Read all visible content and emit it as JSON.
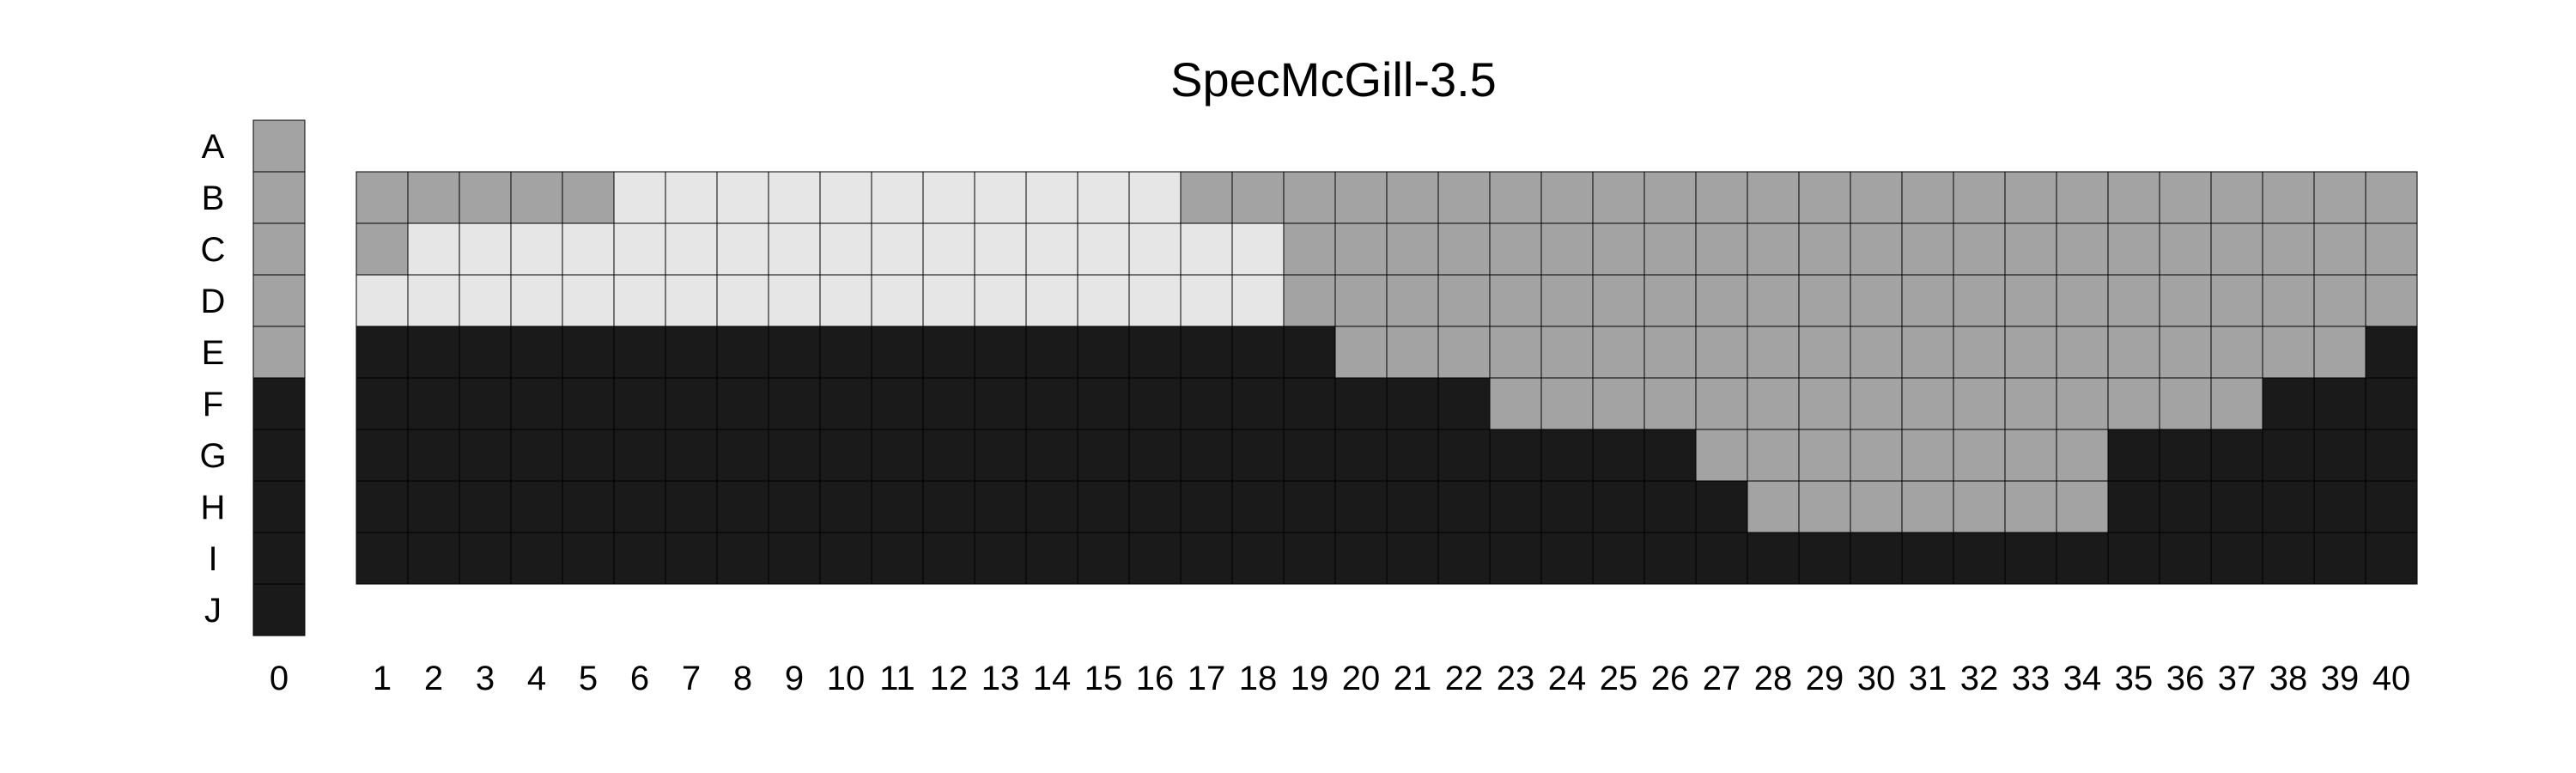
{
  "chart_data": {
    "type": "heatmap",
    "title": "SpecMcGill-3.5",
    "rows": [
      "A",
      "B",
      "C",
      "D",
      "E",
      "F",
      "G",
      "H",
      "I",
      "J"
    ],
    "column_0": {
      "label": "0",
      "cells": [
        "gray",
        "gray",
        "gray",
        "gray",
        "gray",
        "black",
        "black",
        "black",
        "black",
        "black"
      ]
    },
    "columns": [
      "1",
      "2",
      "3",
      "4",
      "5",
      "6",
      "7",
      "8",
      "9",
      "10",
      "11",
      "12",
      "13",
      "14",
      "15",
      "16",
      "17",
      "18",
      "19",
      "20",
      "21",
      "22",
      "23",
      "24",
      "25",
      "26",
      "27",
      "28",
      "29",
      "30",
      "31",
      "32",
      "33",
      "34",
      "35",
      "36",
      "37",
      "38",
      "39",
      "40"
    ],
    "grid_rows": [
      "B",
      "C",
      "D",
      "E",
      "F",
      "G",
      "H",
      "I"
    ],
    "grid": [
      "GGGGGLLLLLLLLLLLGGGGGGGGGGGGGGGGGGGGGGGG",
      "GLLLLLLLLLLLLLLLLLGGGGGGGGGGGGGGGGGGGGGG",
      "LLLLLLLLLLLLLLLLLLGGGGGGGGGGGGGGGGGGGGGG",
      "KKKKKKKKKKKKKKKKKKKGGGGGGGGGGGGGGGGGGGGK",
      "KKKKKKKKKKKKKKKKKKKKKKGGGGGGGGGGGGGGGKKK",
      "KKKKKKKKKKKKKKKKKKKKKKKKKKGGGGGGGGKKKKKK",
      "KKKKKKKKKKKKKKKKKKKKKKKKKKKGGGGGGGKKKKKK",
      "KKKKKKKKKKKKKKKKKKKKKKKKKKKKKKKKKKKKKKKK"
    ],
    "legend_codes": {
      "L": "light",
      "G": "gray",
      "K": "black"
    },
    "colors": {
      "light": "#e6e6e6",
      "gray": "#a3a3a3",
      "black": "#1a1a1a",
      "border": "#000000"
    },
    "xlabel": "",
    "ylabel": ""
  }
}
